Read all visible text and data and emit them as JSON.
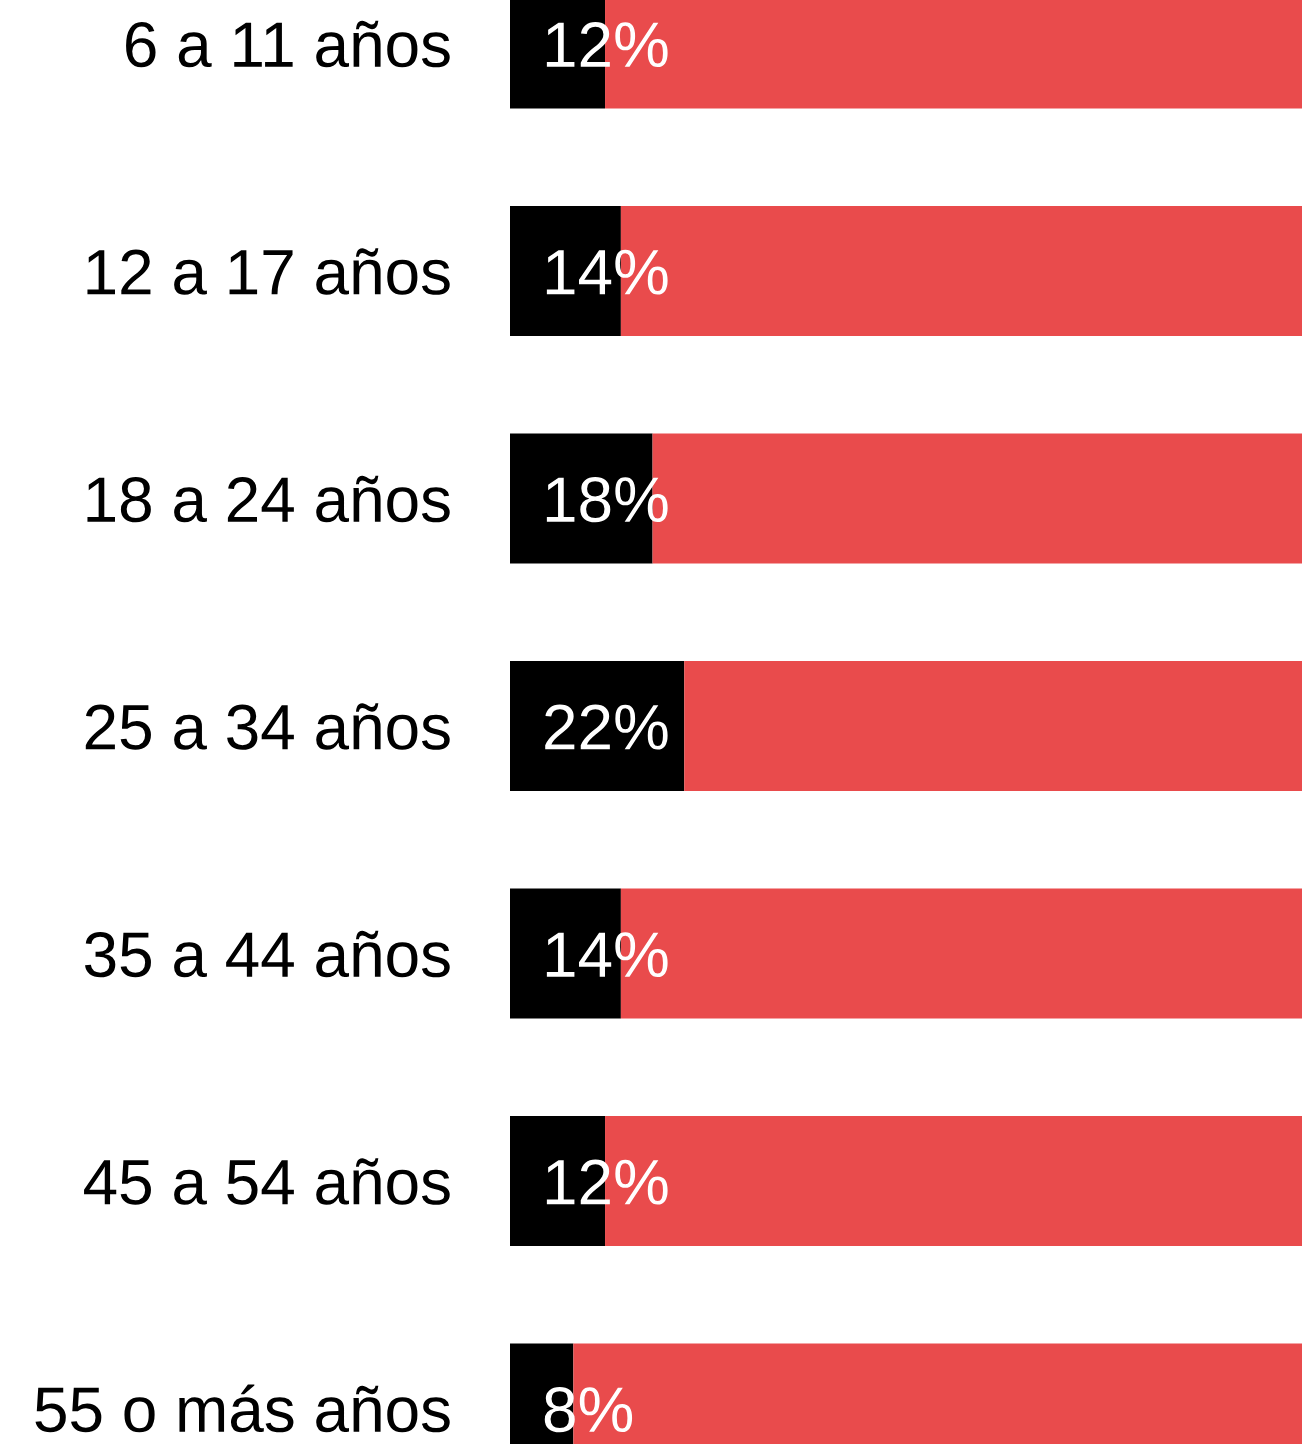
{
  "chart_data": {
    "type": "bar",
    "orientation": "horizontal",
    "stacked": true,
    "categories": [
      "6 a 11 años",
      "12 a 17 años",
      "18 a 24 años",
      "25 a 34 años",
      "35 a 44 años",
      "45 a 54 años",
      "55 o más años"
    ],
    "series": [
      {
        "color": "#000000",
        "values": [
          12,
          14,
          18,
          22,
          14,
          12,
          8
        ],
        "value_labels": [
          "12%",
          "14%",
          "18%",
          "22%",
          "14%",
          "12%",
          "8%"
        ]
      },
      {
        "color": "#e94b4c",
        "values": [
          88,
          86,
          82,
          78,
          86,
          88,
          92
        ]
      }
    ],
    "xlim": [
      0,
      100
    ],
    "tick_labels": "y"
  }
}
